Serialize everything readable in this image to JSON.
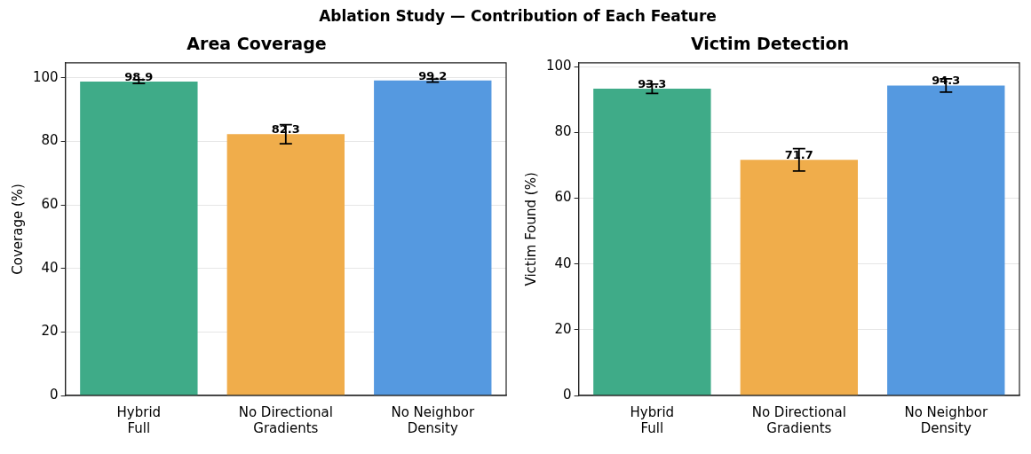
{
  "chart_data": [
    {
      "type": "bar",
      "title": "Area Coverage",
      "ylabel": "Coverage (%)",
      "annotations": [
        "Ablation Study — Contribution of Each Feature"
      ],
      "categories": [
        "Hybrid\nFull",
        "No Directional\nGradients",
        "No Neighbor\nDensity"
      ],
      "values": [
        98.9,
        82.3,
        99.2
      ],
      "errors": [
        0.6,
        3,
        0.5
      ],
      "colors": [
        "#3fab88",
        "#f0ad4b",
        "#5599e0"
      ],
      "ylim": [
        0,
        104.8
      ],
      "yticks": [
        0,
        20,
        40,
        60,
        80,
        100
      ],
      "grid": "y",
      "data_labels": true
    },
    {
      "type": "bar",
      "title": "Victim Detection",
      "ylabel": "Victim Found (%)",
      "categories": [
        "Hybrid\nFull",
        "No Directional\nGradients",
        "No Neighbor\nDensity"
      ],
      "values": [
        93.3,
        71.7,
        94.3
      ],
      "errors": [
        1.4,
        3.4,
        2
      ],
      "colors": [
        "#3fab88",
        "#f0ad4b",
        "#5599e0"
      ],
      "ylim": [
        0,
        101.2
      ],
      "yticks": [
        0,
        20,
        40,
        60,
        80,
        100
      ],
      "grid": "y",
      "data_labels": true
    }
  ]
}
